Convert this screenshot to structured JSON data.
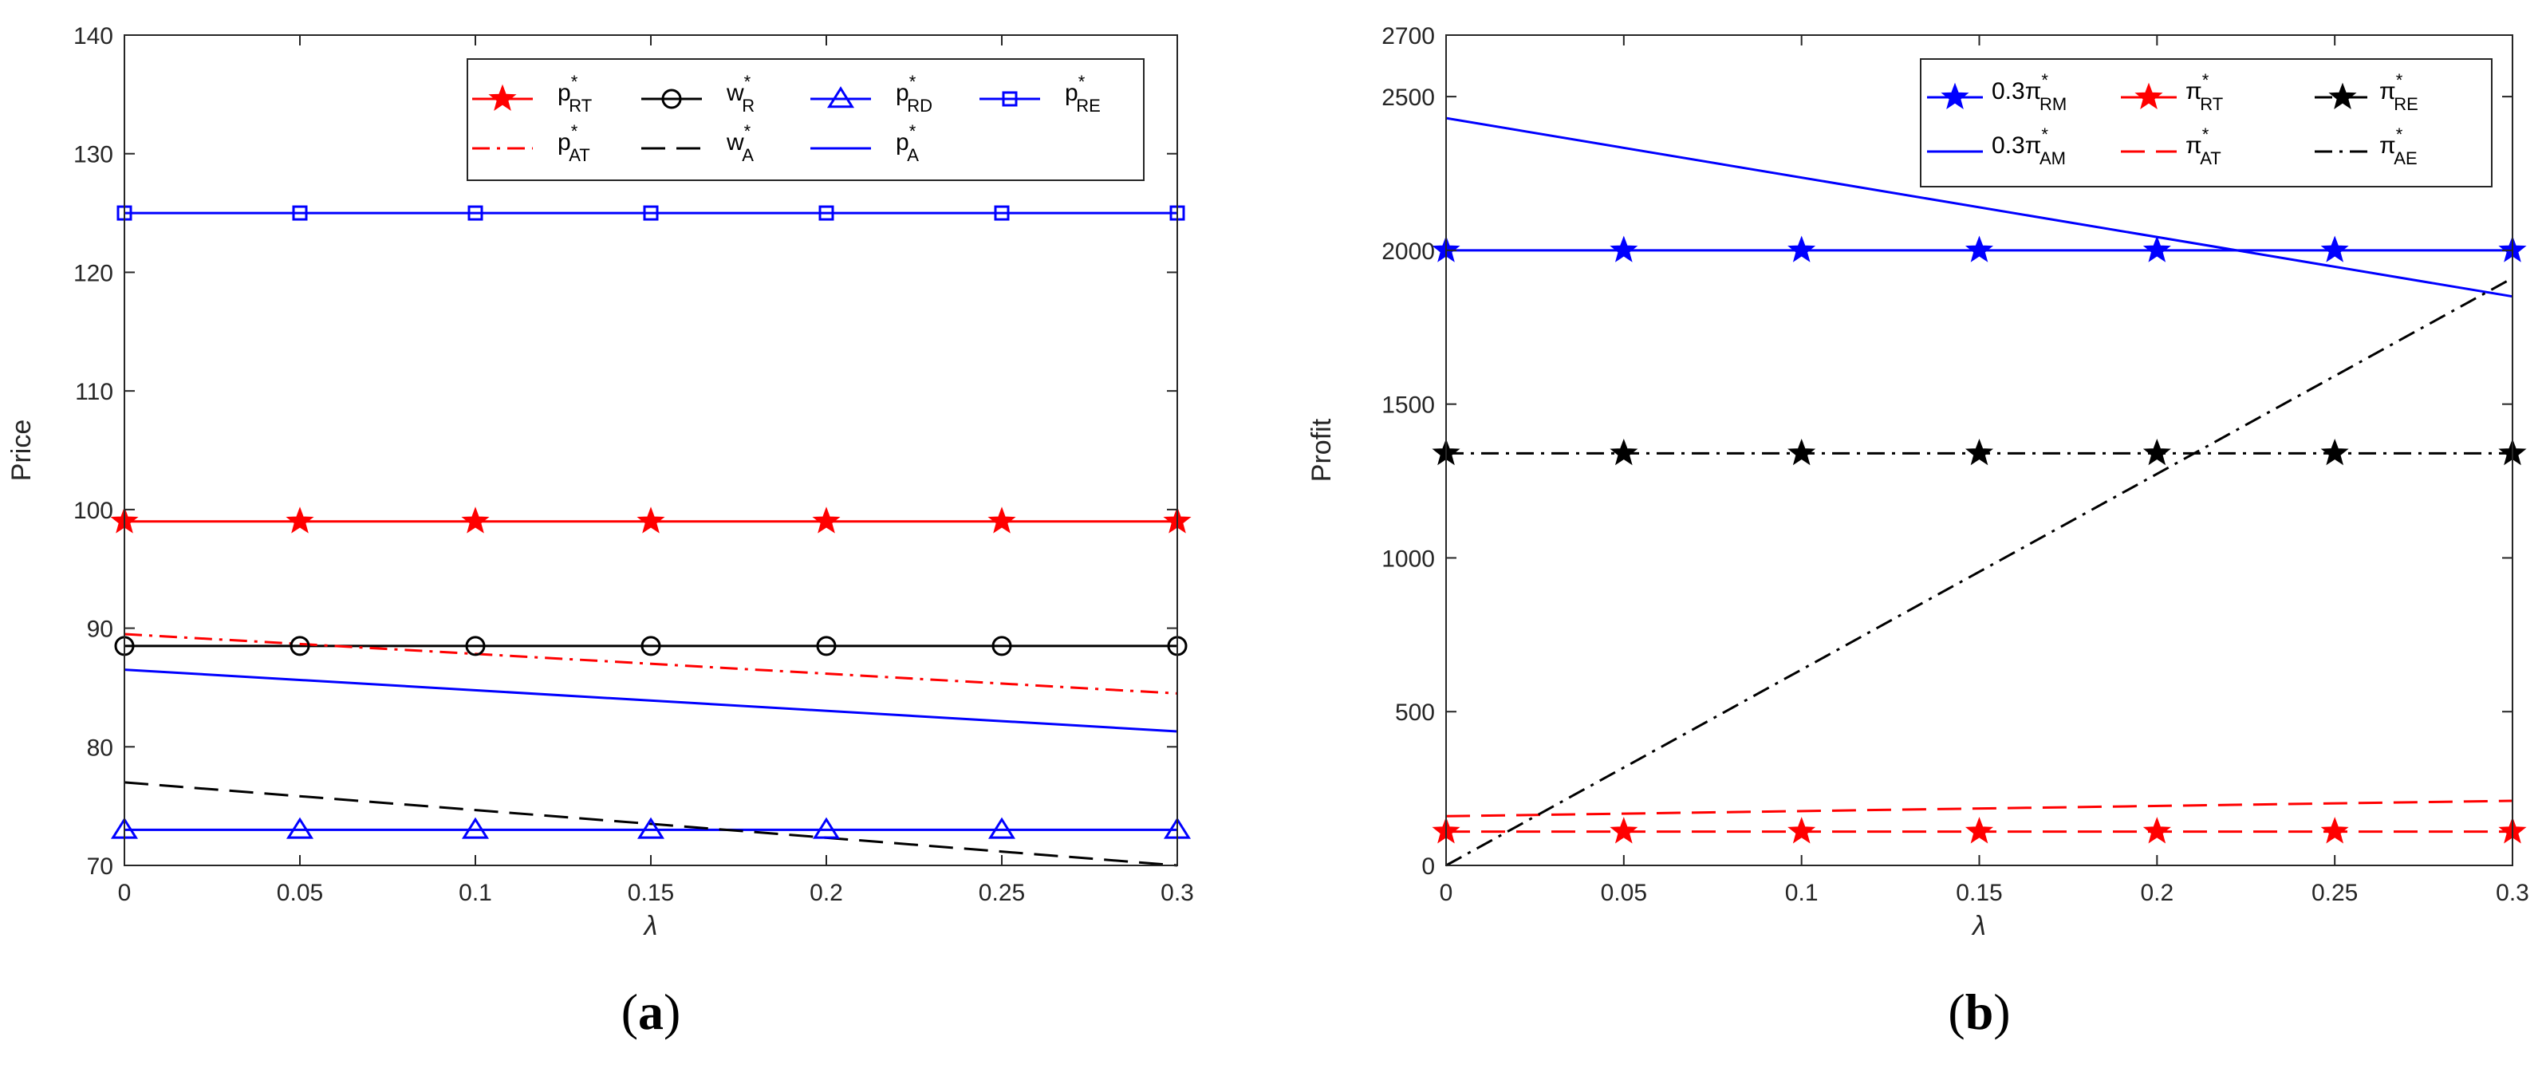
{
  "chart_data": [
    {
      "type": "line",
      "panel_label": "a",
      "xlabel": "λ",
      "ylabel": "Price",
      "xlim": [
        0,
        0.3
      ],
      "ylim": [
        70,
        140
      ],
      "xticks": [
        0,
        0.05,
        0.1,
        0.15,
        0.2,
        0.25,
        0.3
      ],
      "xtick_labels": [
        "0",
        "0.05",
        "0.1",
        "0.15",
        "0.2",
        "0.25",
        "0.3"
      ],
      "yticks": [
        70,
        80,
        90,
        100,
        110,
        120,
        130,
        140
      ],
      "ytick_labels": [
        "70",
        "80",
        "90",
        "100",
        "110",
        "120",
        "130",
        "140"
      ],
      "legend_location": "top-right",
      "legend_columns": 4,
      "series": [
        {
          "name": "p*RT",
          "base": "p",
          "sup": "*",
          "sub": "RT",
          "color": "#ff0000",
          "dash": "solid",
          "marker": "star",
          "x": [
            0,
            0.05,
            0.1,
            0.15,
            0.2,
            0.25,
            0.3
          ],
          "y": [
            99,
            99,
            99,
            99,
            99,
            99,
            99
          ]
        },
        {
          "name": "w*R",
          "base": "w",
          "sup": "*",
          "sub": "R",
          "color": "#000000",
          "dash": "solid",
          "marker": "circle",
          "x": [
            0,
            0.05,
            0.1,
            0.15,
            0.2,
            0.25,
            0.3
          ],
          "y": [
            88.5,
            88.5,
            88.5,
            88.5,
            88.5,
            88.5,
            88.5
          ]
        },
        {
          "name": "p*RD",
          "base": "p",
          "sup": "*",
          "sub": "RD",
          "color": "#0000ff",
          "dash": "solid",
          "marker": "triangle",
          "x": [
            0,
            0.05,
            0.1,
            0.15,
            0.2,
            0.25,
            0.3
          ],
          "y": [
            73,
            73,
            73,
            73,
            73,
            73,
            73
          ]
        },
        {
          "name": "p*RE",
          "base": "p",
          "sup": "*",
          "sub": "RE",
          "color": "#0000ff",
          "dash": "solid",
          "marker": "square",
          "x": [
            0,
            0.05,
            0.1,
            0.15,
            0.2,
            0.25,
            0.3
          ],
          "y": [
            125,
            125,
            125,
            125,
            125,
            125,
            125
          ]
        },
        {
          "name": "p*AT",
          "base": "p",
          "sup": "*",
          "sub": "AT",
          "color": "#ff0000",
          "dash": "dashdot",
          "marker": "none",
          "x": [
            0,
            0.3
          ],
          "y": [
            89.5,
            84.5
          ]
        },
        {
          "name": "w*A",
          "base": "w",
          "sup": "*",
          "sub": "A",
          "color": "#000000",
          "dash": "dashed",
          "marker": "none",
          "x": [
            0,
            0.3
          ],
          "y": [
            77,
            70
          ]
        },
        {
          "name": "p*A",
          "base": "p",
          "sup": "*",
          "sub": "A",
          "color": "#0000ff",
          "dash": "solid",
          "marker": "none",
          "x": [
            0,
            0.3
          ],
          "y": [
            86.5,
            81.3
          ]
        }
      ]
    },
    {
      "type": "line",
      "panel_label": "b",
      "xlabel": "λ",
      "ylabel": "Profit",
      "xlim": [
        0,
        0.3
      ],
      "ylim": [
        0,
        2700
      ],
      "xticks": [
        0,
        0.05,
        0.1,
        0.15,
        0.2,
        0.25,
        0.3
      ],
      "xtick_labels": [
        "0",
        "0.05",
        "0.1",
        "0.15",
        "0.2",
        "0.25",
        "0.3"
      ],
      "yticks": [
        0,
        500,
        1000,
        1500,
        2000,
        2500,
        2700
      ],
      "ytick_labels": [
        "0",
        "500",
        "1000",
        "1500",
        "2000",
        "2500",
        "2700"
      ],
      "legend_location": "top-right",
      "legend_columns": 3,
      "series": [
        {
          "name": "0.3π*RM",
          "base": "0.3π",
          "sup": "*",
          "sub": "RM",
          "color": "#0000ff",
          "dash": "solid",
          "marker": "star",
          "x": [
            0,
            0.05,
            0.1,
            0.15,
            0.2,
            0.25,
            0.3
          ],
          "y": [
            2000,
            2000,
            2000,
            2000,
            2000,
            2000,
            2000
          ]
        },
        {
          "name": "π*RT",
          "base": "π",
          "sup": "*",
          "sub": "RT",
          "color": "#ff0000",
          "dash": "dashed",
          "marker": "star",
          "x": [
            0,
            0.05,
            0.1,
            0.15,
            0.2,
            0.25,
            0.3
          ],
          "y": [
            110,
            110,
            110,
            110,
            110,
            110,
            110
          ]
        },
        {
          "name": "π*RE",
          "base": "π",
          "sup": "*",
          "sub": "RE",
          "color": "#000000",
          "dash": "dashdot",
          "marker": "star",
          "x": [
            0,
            0.05,
            0.1,
            0.15,
            0.2,
            0.25,
            0.3
          ],
          "y": [
            1340,
            1340,
            1340,
            1340,
            1340,
            1340,
            1340
          ]
        },
        {
          "name": "0.3π*AM",
          "base": "0.3π",
          "sup": "*",
          "sub": "AM",
          "color": "#0000ff",
          "dash": "solid",
          "marker": "none",
          "x": [
            0,
            0.3
          ],
          "y": [
            2430,
            1850
          ]
        },
        {
          "name": "π*AT",
          "base": "π",
          "sup": "*",
          "sub": "AT",
          "color": "#ff0000",
          "dash": "dashed",
          "marker": "none",
          "x": [
            0,
            0.3
          ],
          "y": [
            160,
            210
          ]
        },
        {
          "name": "π*AE",
          "base": "π",
          "sup": "*",
          "sub": "AE",
          "color": "#000000",
          "dash": "dashdot",
          "marker": "none",
          "x": [
            0,
            0.3
          ],
          "y": [
            0,
            1910
          ]
        }
      ]
    }
  ]
}
